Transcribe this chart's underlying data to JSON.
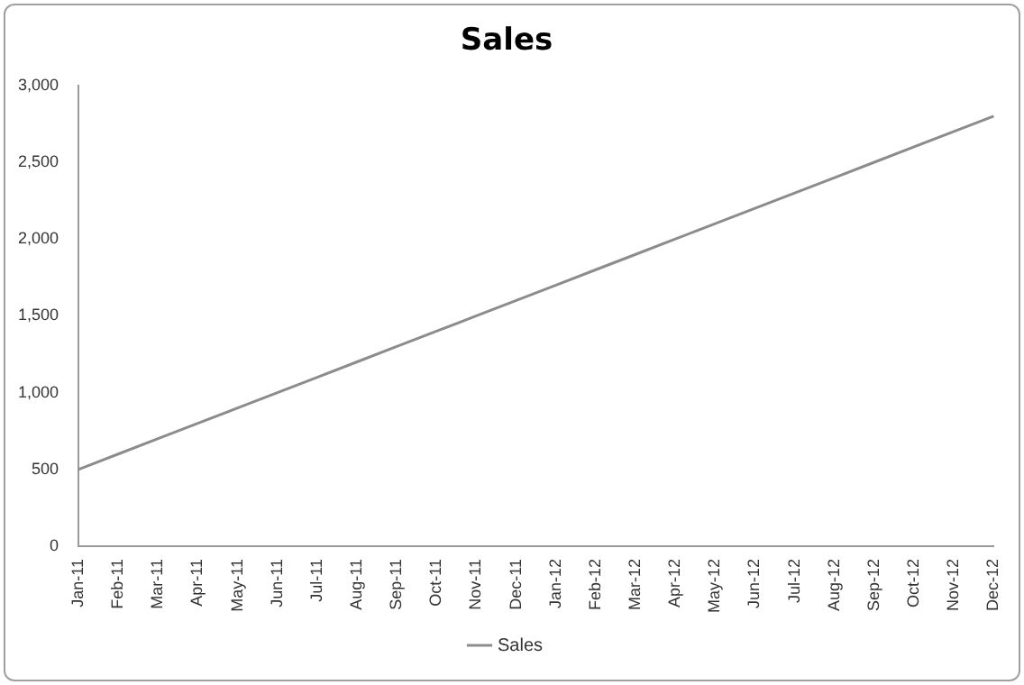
{
  "chart_data": {
    "type": "line",
    "title": "Sales",
    "categories": [
      "Jan-11",
      "Feb-11",
      "Mar-11",
      "Apr-11",
      "May-11",
      "Jun-11",
      "Jul-11",
      "Aug-11",
      "Sep-11",
      "Oct-11",
      "Nov-11",
      "Dec-11",
      "Jan-12",
      "Feb-12",
      "Mar-12",
      "Apr-12",
      "May-12",
      "Jun-12",
      "Jul-12",
      "Aug-12",
      "Sep-12",
      "Oct-12",
      "Nov-12",
      "Dec-12"
    ],
    "series": [
      {
        "name": "Sales",
        "color": "#8c8c8c",
        "values": [
          500,
          600,
          700,
          800,
          900,
          1000,
          1100,
          1200,
          1300,
          1400,
          1500,
          1600,
          1700,
          1800,
          1900,
          2000,
          2100,
          2200,
          2300,
          2400,
          2500,
          2600,
          2700,
          2800
        ]
      }
    ],
    "ylim": [
      0,
      3000
    ],
    "yticks": [
      0,
      500,
      {
        "value": 1000,
        "label": "1,000"
      },
      {
        "value": 1500,
        "label": "1,500"
      },
      {
        "value": 2000,
        "label": "2,000"
      },
      {
        "value": 2500,
        "label": "2,500"
      },
      {
        "value": 3000,
        "label": "3,000"
      }
    ],
    "grid": false,
    "legend": "bottom",
    "marker": "none"
  }
}
